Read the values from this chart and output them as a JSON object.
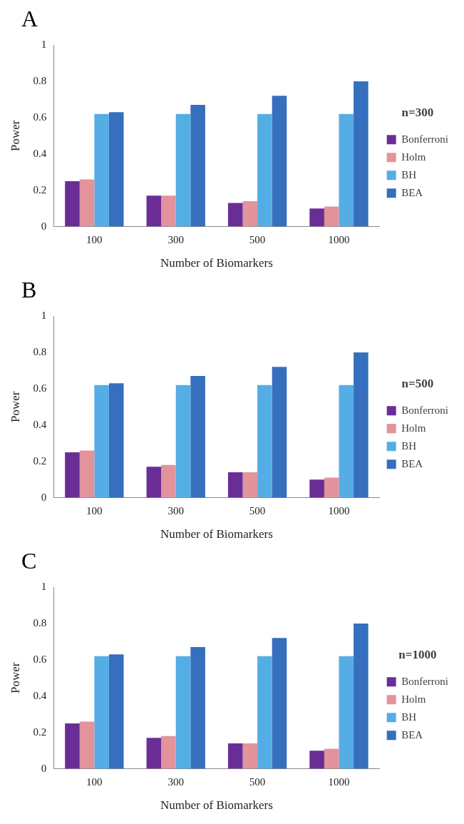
{
  "chart_data": [
    {
      "type": "bar",
      "title": "A",
      "xlabel": "Number of Biomarkers",
      "ylabel": "Power",
      "legend_title": "n=300",
      "legend": "right",
      "grid": false,
      "categories": [
        "100",
        "300",
        "500",
        "1000"
      ],
      "ylim": [
        0,
        1
      ],
      "yticks": [
        0,
        0.2,
        0.4,
        0.6,
        0.8,
        1
      ],
      "series": [
        {
          "name": "Bonferroni",
          "color": "#6a2d96",
          "values": [
            0.25,
            0.17,
            0.13,
            0.1
          ]
        },
        {
          "name": "Holm",
          "color": "#e2939b",
          "values": [
            0.26,
            0.17,
            0.14,
            0.11
          ]
        },
        {
          "name": "BH",
          "color": "#55ade6",
          "values": [
            0.62,
            0.62,
            0.62,
            0.62
          ]
        },
        {
          "name": "BEA",
          "color": "#356fbd",
          "values": [
            0.63,
            0.67,
            0.72,
            0.8
          ]
        }
      ]
    },
    {
      "type": "bar",
      "title": "B",
      "xlabel": "Number of Biomarkers",
      "ylabel": "Power",
      "legend_title": "n=500",
      "legend": "right",
      "grid": false,
      "categories": [
        "100",
        "300",
        "500",
        "1000"
      ],
      "ylim": [
        0,
        1
      ],
      "yticks": [
        0,
        0.2,
        0.4,
        0.6,
        0.8,
        1
      ],
      "series": [
        {
          "name": "Bonferroni",
          "color": "#6a2d96",
          "values": [
            0.25,
            0.17,
            0.14,
            0.1
          ]
        },
        {
          "name": "Holm",
          "color": "#e2939b",
          "values": [
            0.26,
            0.18,
            0.14,
            0.11
          ]
        },
        {
          "name": "BH",
          "color": "#55ade6",
          "values": [
            0.62,
            0.62,
            0.62,
            0.62
          ]
        },
        {
          "name": "BEA",
          "color": "#356fbd",
          "values": [
            0.63,
            0.67,
            0.72,
            0.8
          ]
        }
      ]
    },
    {
      "type": "bar",
      "title": "C",
      "xlabel": "Number of Biomarkers",
      "ylabel": "Power",
      "legend_title": "n=1000",
      "legend": "right",
      "grid": false,
      "categories": [
        "100",
        "300",
        "500",
        "1000"
      ],
      "ylim": [
        0,
        1
      ],
      "yticks": [
        0,
        0.2,
        0.4,
        0.6,
        0.8,
        1
      ],
      "series": [
        {
          "name": "Bonferroni",
          "color": "#6a2d96",
          "values": [
            0.25,
            0.17,
            0.14,
            0.1
          ]
        },
        {
          "name": "Holm",
          "color": "#e2939b",
          "values": [
            0.26,
            0.18,
            0.14,
            0.11
          ]
        },
        {
          "name": "BH",
          "color": "#55ade6",
          "values": [
            0.62,
            0.62,
            0.62,
            0.62
          ]
        },
        {
          "name": "BEA",
          "color": "#356fbd",
          "values": [
            0.63,
            0.67,
            0.72,
            0.8
          ]
        }
      ]
    }
  ]
}
